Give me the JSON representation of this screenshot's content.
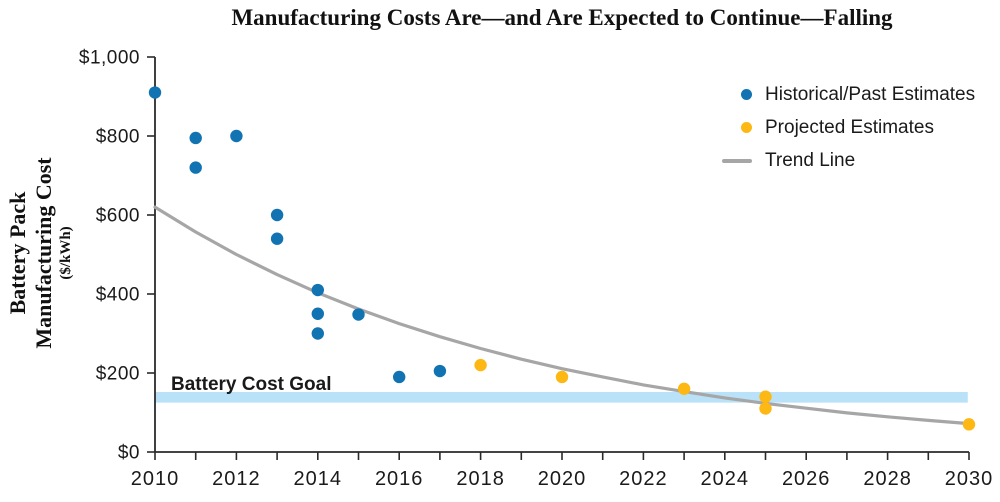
{
  "title": "Manufacturing Costs Are—and Are Expected to Continue—Falling",
  "y_axis_label": {
    "line1": "Battery Pack",
    "line2": "Manufacturing Cost",
    "unit": "($/kWh)"
  },
  "legend": {
    "items": [
      {
        "label": "Historical/Past Estimates",
        "marker": "dot",
        "color": "#1173B2"
      },
      {
        "label": "Projected Estimates",
        "marker": "dot",
        "color": "#FDB813"
      },
      {
        "label": "Trend Line",
        "marker": "line",
        "color": "#A6A6A6"
      }
    ]
  },
  "goal": {
    "label": "Battery Cost Goal"
  },
  "colors": {
    "historical": "#1173B2",
    "projected": "#FDB813",
    "trend": "#A6A6A6",
    "goal_band": "#B9E1F8",
    "axis": "#2a2a2a",
    "text": "#1a1a1a",
    "background": "#ffffff"
  },
  "chart_data": {
    "type": "scatter",
    "title": "Manufacturing Costs Are—and Are Expected to Continue—Falling",
    "xlabel": "",
    "ylabel": "Battery Pack Manufacturing Cost ($/kWh)",
    "xlim": [
      2010,
      2030
    ],
    "ylim": [
      0,
      1000
    ],
    "grid": false,
    "legend_position": "top-right",
    "x_ticks": {
      "labeled": [
        2010,
        2012,
        2014,
        2016,
        2018,
        2020,
        2022,
        2024,
        2026,
        2028,
        2030
      ],
      "minor_every": 1
    },
    "y_ticks": {
      "values": [
        0,
        200,
        400,
        600,
        800,
        1000
      ],
      "labels": [
        "$0",
        "$200",
        "$400",
        "$600",
        "$800",
        "$1,000"
      ]
    },
    "series": [
      {
        "name": "Historical/Past Estimates",
        "color": "#1173B2",
        "points": [
          [
            2010,
            910
          ],
          [
            2011,
            795
          ],
          [
            2011,
            720
          ],
          [
            2012,
            800
          ],
          [
            2013,
            600
          ],
          [
            2013,
            540
          ],
          [
            2014,
            410
          ],
          [
            2014,
            350
          ],
          [
            2014,
            300
          ],
          [
            2015,
            348
          ],
          [
            2016,
            190
          ],
          [
            2017,
            205
          ]
        ]
      },
      {
        "name": "Projected Estimates",
        "color": "#FDB813",
        "points": [
          [
            2018,
            220
          ],
          [
            2020,
            190
          ],
          [
            2023,
            160
          ],
          [
            2025,
            140
          ],
          [
            2025,
            110
          ],
          [
            2030,
            70
          ]
        ]
      }
    ],
    "trend": {
      "name": "Trend Line",
      "color": "#A6A6A6",
      "x": [
        2010,
        2011,
        2012,
        2013,
        2014,
        2015,
        2016,
        2017,
        2018,
        2019,
        2020,
        2021,
        2022,
        2023,
        2024,
        2025,
        2026,
        2027,
        2028,
        2029,
        2030
      ],
      "values": [
        620,
        557,
        500,
        449,
        403,
        362,
        325,
        292,
        262,
        235,
        211,
        190,
        170,
        153,
        137,
        123,
        111,
        99,
        89,
        80,
        72
      ]
    },
    "goal_band": {
      "label": "Battery Cost Goal",
      "from": 125,
      "to": 152,
      "color": "#B9E1F8"
    }
  }
}
